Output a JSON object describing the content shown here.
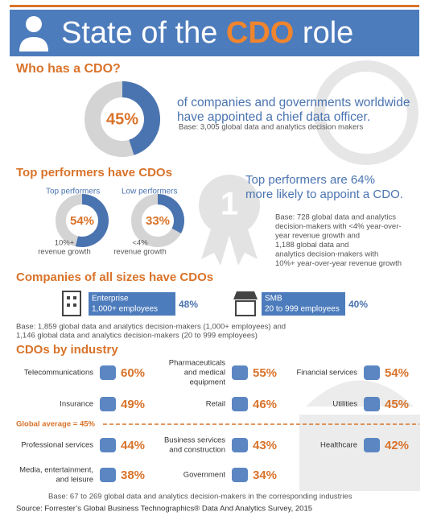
{
  "header": {
    "title_parts": [
      "State of the ",
      "CDO",
      " role"
    ]
  },
  "who": {
    "heading": "Who has a CDO?",
    "donut": {
      "value": 45,
      "label": "45%"
    },
    "statement": [
      "of companies and governments worldwide",
      "have appointed a chief data officer."
    ],
    "base": "Base: 3,005 global data and analytics decision makers"
  },
  "top": {
    "heading": "Top performers have CDOs",
    "groups": [
      {
        "name": "Top performers",
        "donut": {
          "value": 54,
          "label": "54%"
        },
        "caption": [
          "10%+",
          "revenue growth"
        ]
      },
      {
        "name": "Low performers",
        "donut": {
          "value": 33,
          "label": "33%"
        },
        "caption": [
          "<4%",
          "revenue growth"
        ]
      }
    ],
    "badge": "1",
    "statement": [
      "Top performers are 64%",
      "more likely to appoint a CDO."
    ],
    "base": [
      "Base: 728 global data and analytics",
      "decision-makers with <4% year-over-",
      "year revenue growth and",
      "1,188 global data and",
      "analytics decision-makers with",
      "10%+ year-over-year revenue growth"
    ]
  },
  "sizes": {
    "heading": "Companies of all sizes have CDOs",
    "items": [
      {
        "name": "Enterprise",
        "detail": "1,000+ employees",
        "percent": "48%"
      },
      {
        "name": "SMB",
        "detail": "20 to 999 employees",
        "percent": "40%"
      }
    ],
    "base": [
      "Base: 1,859 global data and analytics decision-makers (1,000+ employees) and",
      "1,146 global data and analytics decision-makers (20 to 999 employees)"
    ]
  },
  "industry": {
    "heading": "CDOs by industry",
    "items": [
      {
        "name": [
          "Telecommunications"
        ],
        "percent": "60%"
      },
      {
        "name": [
          "Pharmaceuticals",
          "and medical",
          "equipment"
        ],
        "percent": "55%"
      },
      {
        "name": [
          "Financial services"
        ],
        "percent": "54%"
      },
      {
        "name": [
          "Insurance"
        ],
        "percent": "49%"
      },
      {
        "name": [
          "Retail"
        ],
        "percent": "46%"
      },
      {
        "name": [
          "Utilities"
        ],
        "percent": "45%"
      },
      {
        "name": [
          "Professional services"
        ],
        "percent": "44%"
      },
      {
        "name": [
          "Business services",
          "and construction"
        ],
        "percent": "43%"
      },
      {
        "name": [
          "Healthcare"
        ],
        "percent": "42%"
      },
      {
        "name": [
          "Media, entertainment,",
          "and leisure"
        ],
        "percent": "38%"
      },
      {
        "name": [
          "Government"
        ],
        "percent": "34%"
      }
    ],
    "global_average": "Global average = 45%",
    "base": "Base: 67 to 269 global data and analytics decision-makers in the corresponding industries"
  },
  "source": "Source: Forrester’s Global Business Technographics® Data And Analytics Survey, 2015"
}
